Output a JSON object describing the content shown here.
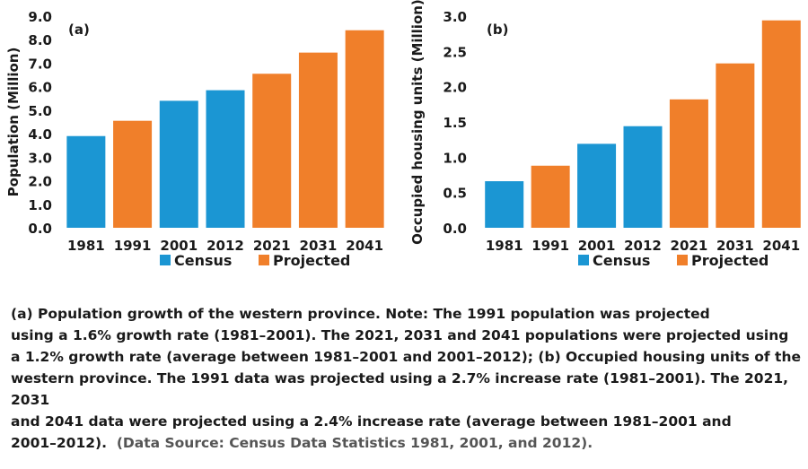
{
  "colors": {
    "census": "#1b96d3",
    "projected": "#f07f2a"
  },
  "legend": {
    "census": "Census",
    "projected": "Projected"
  },
  "chart_data": [
    {
      "type": "bar",
      "panel_label": "(a)",
      "categories": [
        "1981",
        "1991",
        "2001",
        "2012",
        "2021",
        "2031",
        "2041"
      ],
      "values": [
        3.9,
        4.55,
        5.4,
        5.85,
        6.55,
        7.45,
        8.4
      ],
      "kinds": [
        "census",
        "projected",
        "census",
        "census",
        "projected",
        "projected",
        "projected"
      ],
      "ylabel": "Population (Million)",
      "ylim": [
        0,
        9
      ],
      "yticks": [
        "0.0",
        "1.0",
        "2.0",
        "3.0",
        "4.0",
        "5.0",
        "6.0",
        "7.0",
        "8.0",
        "9.0"
      ],
      "legend_position": "bottom"
    },
    {
      "type": "bar",
      "panel_label": "(b)",
      "categories": [
        "1981",
        "1991",
        "2001",
        "2012",
        "2021",
        "2031",
        "2041"
      ],
      "values": [
        0.66,
        0.88,
        1.19,
        1.44,
        1.82,
        2.33,
        2.94
      ],
      "kinds": [
        "census",
        "projected",
        "census",
        "census",
        "projected",
        "projected",
        "projected"
      ],
      "ylabel": "Occupied housing units (Million)",
      "ylim": [
        0,
        3
      ],
      "yticks": [
        "0.0",
        "0.5",
        "1.0",
        "1.5",
        "2.0",
        "2.5",
        "3.0"
      ],
      "legend_position": "bottom"
    }
  ],
  "caption": {
    "line1": "(a) Population growth of the western province. Note: The 1991 population was projected",
    "line2": "using a 1.6% growth rate (1981–2001). The 2021, 2031 and 2041 populations were projected using",
    "line3": "a 1.2% growth rate (average between 1981–2001 and 2001–2012); (b) Occupied housing units of the",
    "line4": "western province. The 1991 data was projected using a 2.7% increase rate (1981–2001). The 2021, 2031",
    "line5": "and 2041 data were projected using a 2.4% increase rate (average between 1981–2001 and",
    "line6": "2001–2012).",
    "source": "(Data Source: Census Data Statistics 1981, 2001, and 2012)."
  }
}
